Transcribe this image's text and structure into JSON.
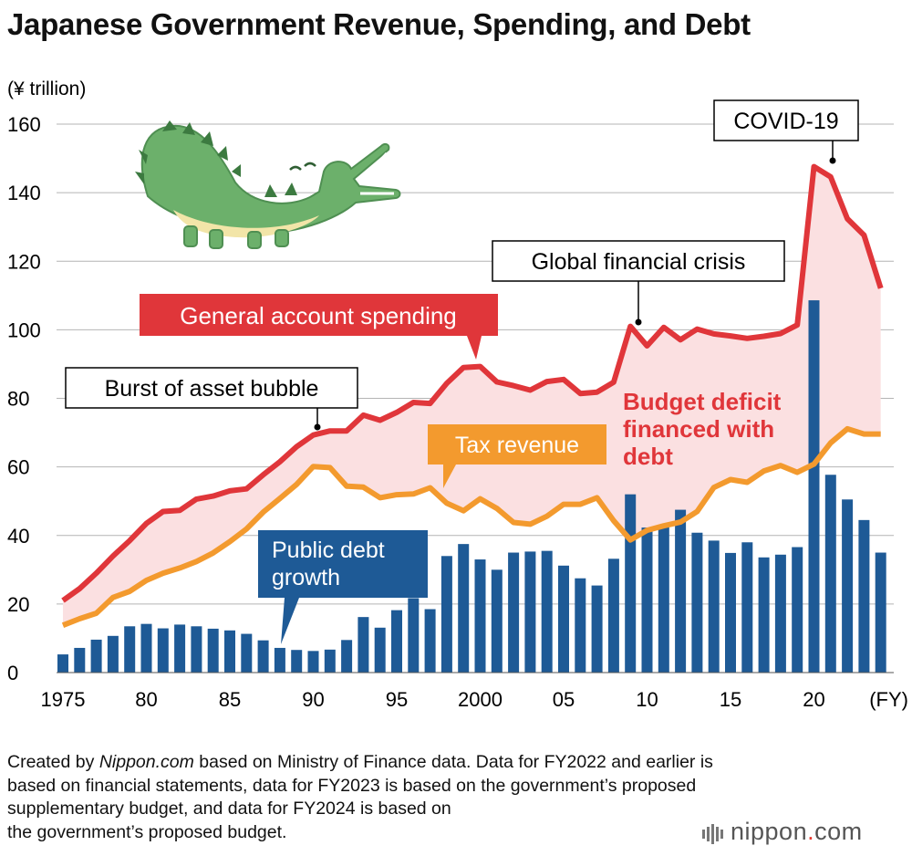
{
  "title": "Japanese Government Revenue, Spending, and Debt",
  "chart_data": {
    "type": "bar+line",
    "unit_label": "(¥ trillion)",
    "x_unit": "(FY)",
    "ylim": [
      0,
      160
    ],
    "y_ticks": [
      0,
      20,
      40,
      60,
      80,
      100,
      120,
      140,
      160
    ],
    "grid": true,
    "x_tick_labels": [
      {
        "year": 1975,
        "label": "1975"
      },
      {
        "year": 1980,
        "label": "80"
      },
      {
        "year": 1985,
        "label": "85"
      },
      {
        "year": 1990,
        "label": "90"
      },
      {
        "year": 1995,
        "label": "95"
      },
      {
        "year": 2000,
        "label": "2000"
      },
      {
        "year": 2005,
        "label": "05"
      },
      {
        "year": 2010,
        "label": "10"
      },
      {
        "year": 2015,
        "label": "15"
      },
      {
        "year": 2020,
        "label": "20"
      }
    ],
    "years": [
      1975,
      1976,
      1977,
      1978,
      1979,
      1980,
      1981,
      1982,
      1983,
      1984,
      1985,
      1986,
      1987,
      1988,
      1989,
      1990,
      1991,
      1992,
      1993,
      1994,
      1995,
      1996,
      1997,
      1998,
      1999,
      2000,
      2001,
      2002,
      2003,
      2004,
      2005,
      2006,
      2007,
      2008,
      2009,
      2010,
      2011,
      2012,
      2013,
      2014,
      2015,
      2016,
      2017,
      2018,
      2019,
      2020,
      2021,
      2022,
      2023,
      2024
    ],
    "series": [
      {
        "name": "General account spending",
        "type": "line",
        "color": "#e0363a",
        "values": [
          21,
          24.5,
          29,
          34,
          38.5,
          43.5,
          47,
          47.3,
          50.6,
          51.5,
          53,
          53.6,
          57.7,
          61.5,
          65.9,
          69.3,
          70.5,
          70.5,
          75.1,
          73.6,
          75.9,
          78.8,
          78.5,
          84.4,
          89,
          89.3,
          84.8,
          83.7,
          82.4,
          84.9,
          85.5,
          81.4,
          81.8,
          84.7,
          101,
          95.3,
          100.7,
          97.1,
          100.2,
          98.8,
          98.2,
          97.5,
          98.1,
          98.9,
          101.4,
          147.6,
          144.6,
          132.4,
          127.6,
          112.1
        ]
      },
      {
        "name": "Tax revenue",
        "type": "line",
        "color": "#f39a2e",
        "values": [
          13.8,
          15.7,
          17.3,
          21.9,
          23.7,
          26.9,
          29,
          30.5,
          32.4,
          34.9,
          38.2,
          41.9,
          46.8,
          50.8,
          54.9,
          60.1,
          59.8,
          54.4,
          54.1,
          51,
          51.9,
          52.1,
          53.9,
          49.4,
          47.2,
          50.7,
          47.9,
          43.8,
          43.3,
          45.6,
          49.1,
          49.1,
          51,
          44.3,
          38.7,
          41.5,
          42.8,
          43.9,
          47,
          54,
          56.3,
          55.5,
          58.8,
          60.4,
          58.4,
          60.8,
          67,
          71.1,
          69.6,
          69.6
        ]
      },
      {
        "name": "Public debt growth",
        "type": "bar",
        "color": "#1e5a96",
        "values": [
          5.3,
          7.2,
          9.6,
          10.7,
          13.5,
          14.2,
          12.9,
          14,
          13.5,
          12.8,
          12.3,
          11.3,
          9.4,
          7.2,
          6.6,
          6.3,
          6.7,
          9.5,
          16.2,
          13.1,
          18.2,
          21.7,
          18.5,
          34,
          37.5,
          33,
          30,
          35,
          35.3,
          35.5,
          31.2,
          27.5,
          25.4,
          33.2,
          52,
          42.3,
          42.8,
          47.5,
          40.8,
          38.5,
          34.9,
          38,
          33.6,
          34.4,
          36.6,
          108.6,
          57.7,
          50.5,
          44.5,
          35
        ]
      }
    ],
    "annotations": {
      "burst": "Burst of asset bubble",
      "gfc": "Global financial crisis",
      "covid": "COVID-19",
      "spending_label": "General account spending",
      "tax_label": "Tax revenue",
      "debt_label_1": "Public debt",
      "debt_label_2": "growth",
      "deficit_1": "Budget deficit",
      "deficit_2": "financed with",
      "deficit_3": "debt"
    }
  },
  "footnote": {
    "prefix": "Created by ",
    "source_name": "Nippon.com",
    "line1_rest": " based on Ministry of Finance data. Data for FY2022 and earlier is",
    "line2": "based on financial statements, data for FY2023 is based on the government’s proposed",
    "line3": "supplementary budget, and data for FY2024 is based on",
    "line4": "the government’s proposed budget."
  },
  "logo": {
    "text_main": "nippon",
    "text_dot": ".",
    "text_tld": "com",
    "icon": "sound-bars-icon"
  },
  "decoration": {
    "icon": "crocodile-icon"
  }
}
